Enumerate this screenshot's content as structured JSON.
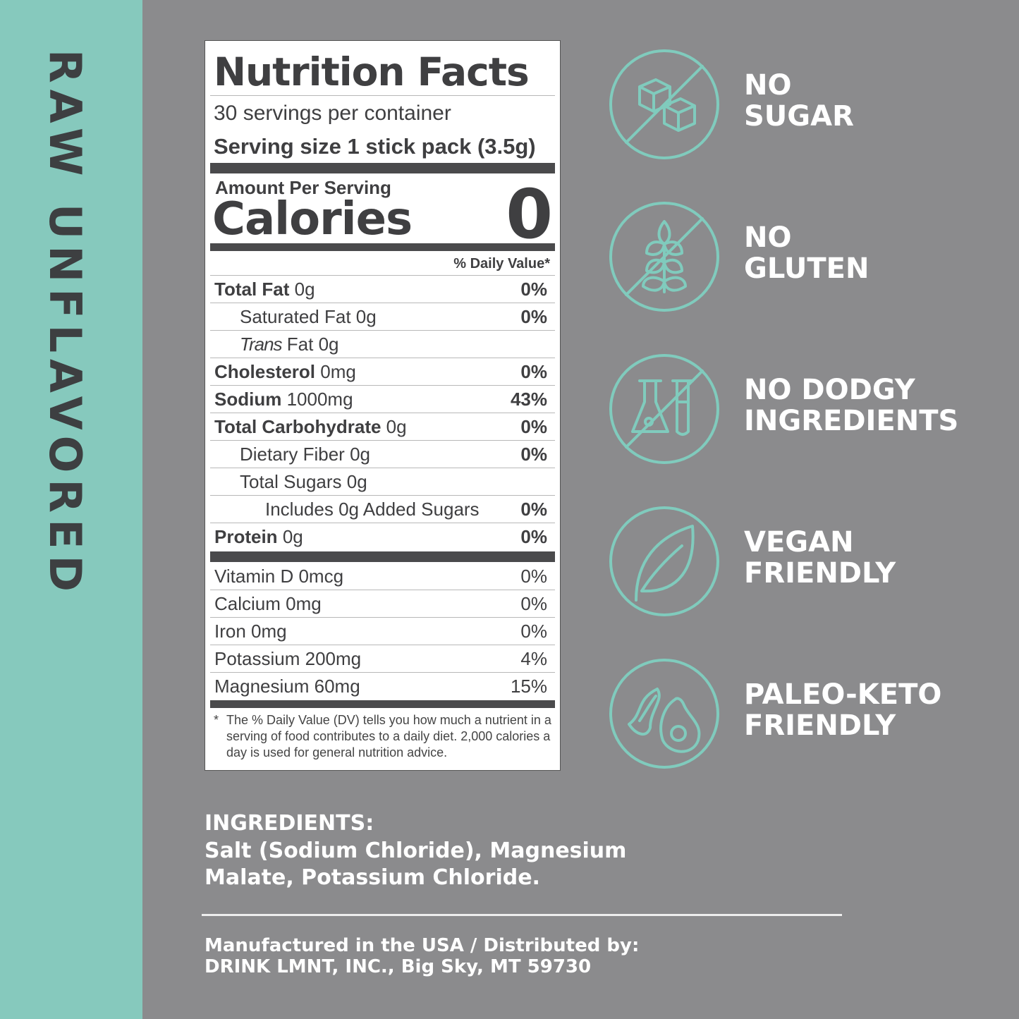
{
  "side_label": "RAW UNFLAVORED",
  "label": {
    "title": "Nutrition Facts",
    "servings": "30 servings per container",
    "serving_size_label": "Serving size",
    "serving_size": "1 stick pack (3.5g)",
    "amount_per_serving": "Amount Per Serving",
    "calories_label": "Calories",
    "calories": "0",
    "dv_header": "% Daily Value*",
    "nutrients": [
      {
        "name": "Total Fat",
        "amount": "0g",
        "dv": "0%",
        "indent": 0,
        "bold": true
      },
      {
        "name": "Saturated Fat",
        "amount": "0g",
        "dv": "0%",
        "indent": 1,
        "bold": false
      },
      {
        "name": "Trans",
        "name_suffix": "Fat",
        "amount": "0g",
        "dv": "",
        "indent": 1,
        "bold": false
      },
      {
        "name": "Cholesterol",
        "amount": "0mg",
        "dv": "0%",
        "indent": 0,
        "bold": true
      },
      {
        "name": "Sodium",
        "amount": "1000mg",
        "dv": "43%",
        "indent": 0,
        "bold": true
      },
      {
        "name": "Total Carbohydrate",
        "amount": "0g",
        "dv": "0%",
        "indent": 0,
        "bold": true
      },
      {
        "name": "Dietary Fiber",
        "amount": "0g",
        "dv": "0%",
        "indent": 1,
        "bold": false
      },
      {
        "name": "Total Sugars",
        "amount": "0g",
        "dv": "",
        "indent": 1,
        "bold": false
      },
      {
        "name": "Includes 0g Added Sugars",
        "amount": "",
        "dv": "0%",
        "indent": 2,
        "bold": false
      },
      {
        "name": "Protein",
        "amount": "0g",
        "dv": "0%",
        "indent": 0,
        "bold": true
      }
    ],
    "vitamins": [
      {
        "name": "Vitamin D 0mcg",
        "dv": "0%"
      },
      {
        "name": "Calcium 0mg",
        "dv": "0%"
      },
      {
        "name": "Iron 0mg",
        "dv": "0%"
      },
      {
        "name": "Potassium 200mg",
        "dv": "4%"
      },
      {
        "name": "Magnesium 60mg",
        "dv": "15%"
      }
    ],
    "footnote_star": "*",
    "footnote": "The % Daily Value (DV) tells you how much a nutrient in a serving of food contributes to a daily diet. 2,000 calories a day is used for general nutrition advice."
  },
  "features": [
    {
      "icon": "sugar-cubes-icon",
      "text": "NO\nSUGAR"
    },
    {
      "icon": "wheat-icon",
      "text": "NO\nGLUTEN"
    },
    {
      "icon": "lab-flask-icon",
      "text": "NO DODGY\nINGREDIENTS"
    },
    {
      "icon": "leaf-icon",
      "text": "VEGAN\nFRIENDLY"
    },
    {
      "icon": "bacon-avocado-icon",
      "text": "PALEO-KETO\nFRIENDLY"
    }
  ],
  "ingredients": {
    "heading": "INGREDIENTS:",
    "text": "Salt (Sodium Chloride), Magnesium Malate, Potassium Chloride."
  },
  "manufacturer": {
    "line1": "Manufactured in the USA / Distributed by:",
    "line2": "DRINK LMNT, INC., Big Sky, MT 59730"
  },
  "colors": {
    "teal": "#86c9bd",
    "background": "#8b8b8d",
    "text_dark": "#3f3f41",
    "white": "#ffffff"
  }
}
